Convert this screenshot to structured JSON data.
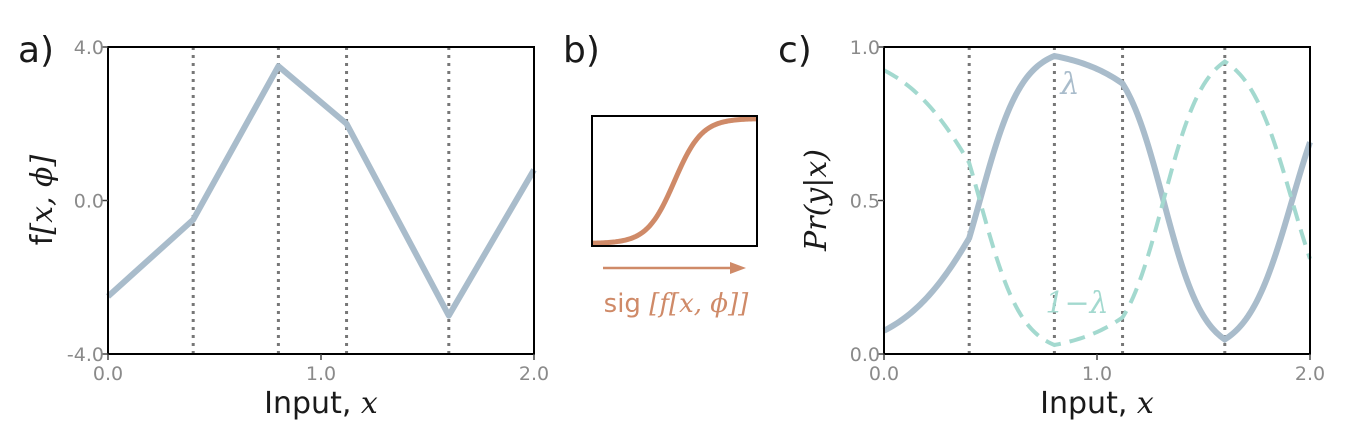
{
  "panels": {
    "a": {
      "letter": "a)"
    },
    "b": {
      "letter": "b)",
      "caption_prefix": "sig ",
      "caption_math": "[f[x, ϕ]]"
    },
    "c": {
      "letter": "c)"
    }
  },
  "colors": {
    "curve": "#a9bccb",
    "dashed": "#a3d9cf",
    "sigmoid": "#cf8a68",
    "grid": "#777777",
    "frame": "#000000"
  },
  "chart_data": [
    {
      "panel": "a",
      "type": "line",
      "xlabel": "Input, ",
      "xlabel_math": "x",
      "ylabel_prefix": "f",
      "ylabel_math": "[x, ϕ]",
      "xlim": [
        0.0,
        2.0
      ],
      "ylim": [
        -4.0,
        4.0
      ],
      "xticks": [
        0.0,
        1.0,
        2.0
      ],
      "xtick_labels": [
        "0.0",
        "1.0",
        "2.0"
      ],
      "yticks": [
        -4.0,
        0.0,
        4.0
      ],
      "ytick_labels": [
        "-4.0",
        "0.0",
        "4.0"
      ],
      "vlines": [
        0.4,
        0.8,
        1.12,
        1.6
      ],
      "series": [
        {
          "style": "solid",
          "x": [
            0.0,
            0.4,
            0.8,
            1.12,
            1.6,
            2.0
          ],
          "y": [
            -2.5,
            -0.5,
            3.5,
            2.0,
            -3.0,
            0.8
          ]
        }
      ]
    },
    {
      "panel": "b",
      "type": "line",
      "xlim": [
        -6,
        6
      ],
      "ylim": [
        0,
        1
      ],
      "series": [
        {
          "style": "solid",
          "function": "sigmoid"
        }
      ]
    },
    {
      "panel": "c",
      "type": "line",
      "xlabel": "Input, ",
      "xlabel_math": "x",
      "ylabel_math": "Pr(y|x)",
      "xlim": [
        0.0,
        2.0
      ],
      "ylim": [
        0.0,
        1.0
      ],
      "xticks": [
        0.0,
        1.0,
        2.0
      ],
      "xtick_labels": [
        "0.0",
        "1.0",
        "2.0"
      ],
      "yticks": [
        0.0,
        0.5,
        1.0
      ],
      "ytick_labels": [
        "0.0",
        "0.5",
        "1.0"
      ],
      "vlines": [
        0.4,
        0.8,
        1.12,
        1.6
      ],
      "series": [
        {
          "name": "λ",
          "style": "solid",
          "x": [
            0.0,
            0.4,
            0.8,
            1.12,
            1.6,
            2.0
          ],
          "z": [
            -2.5,
            -0.5,
            3.5,
            2.0,
            -3.0,
            0.8
          ]
        },
        {
          "name": "1−λ",
          "style": "dashed",
          "x": [
            0.0,
            0.4,
            0.8,
            1.12,
            1.6,
            2.0
          ],
          "z": [
            -2.5,
            -0.5,
            3.5,
            2.0,
            -3.0,
            0.8
          ]
        }
      ]
    }
  ]
}
